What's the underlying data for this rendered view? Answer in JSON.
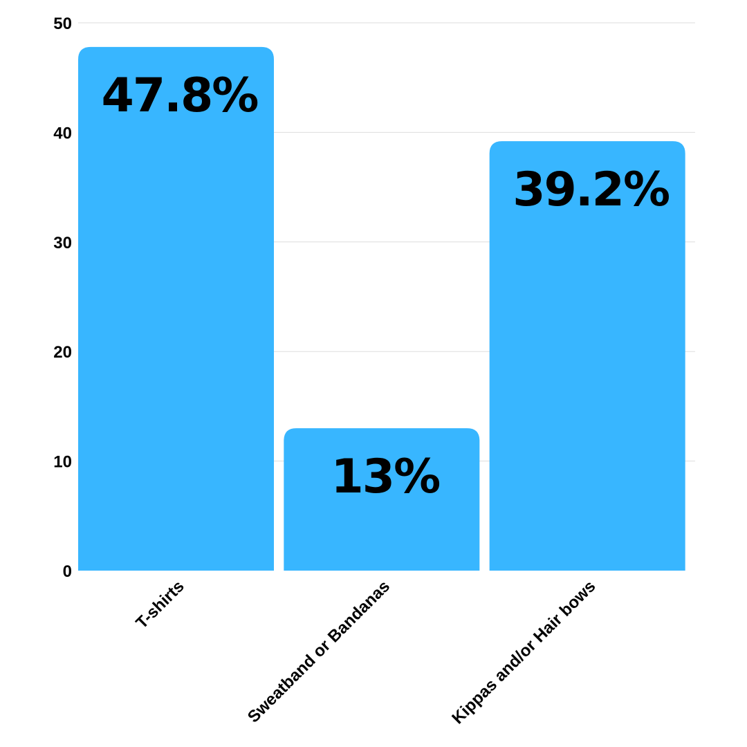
{
  "chart_data": {
    "type": "bar",
    "title": "",
    "xlabel": "",
    "ylabel": "",
    "categories": [
      "T-shirts",
      "Sweatband or Bandanas",
      "Kippas and/or Hair bows"
    ],
    "values": [
      47.8,
      13,
      39.2
    ],
    "data_labels": [
      "47.8%",
      "13%",
      "39.2%"
    ],
    "ylim": [
      0,
      50
    ],
    "yticks": [
      0,
      10,
      20,
      30,
      40,
      50
    ],
    "ytick_labels": [
      "0",
      "10",
      "20",
      "30",
      "40",
      "50"
    ],
    "grid": true,
    "legend": "none",
    "colors": {
      "bar": "#38b6ff",
      "grid": "#dddddd",
      "text": "#000000"
    }
  }
}
